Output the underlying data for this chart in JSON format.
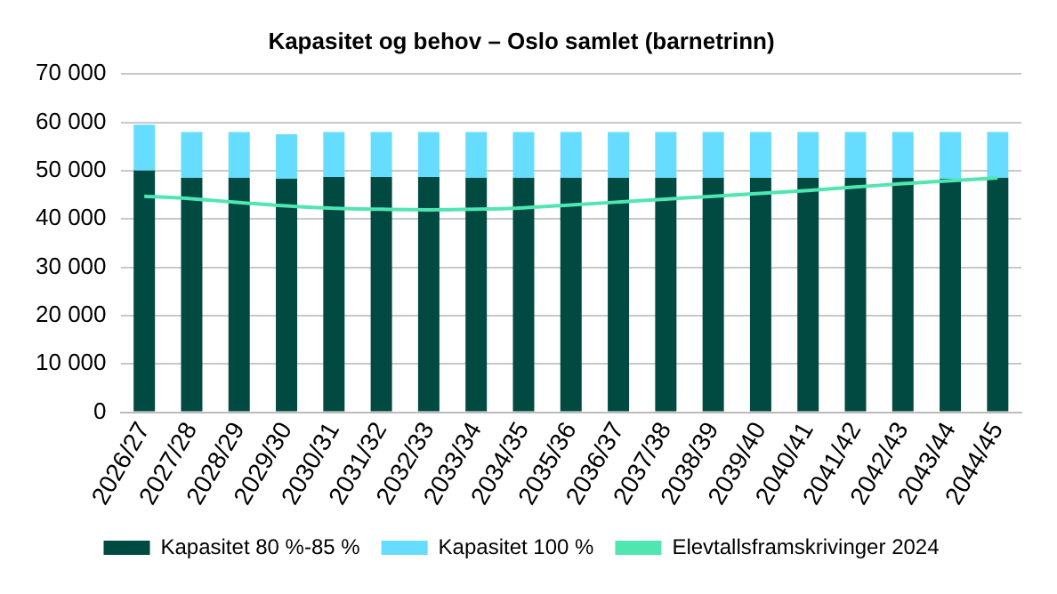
{
  "chart_data": {
    "type": "bar",
    "title": "Kapasitet og behov – Oslo samlet (barnetrinn)",
    "stacked": true,
    "legend": "bottom",
    "grid": "y",
    "marker": "none",
    "categories": [
      "2026/27",
      "2027/28",
      "2028/29",
      "2029/30",
      "2030/31",
      "2031/32",
      "2032/33",
      "2033/34",
      "2034/35",
      "2035/36",
      "2036/37",
      "2037/38",
      "2038/39",
      "2039/40",
      "2040/41",
      "2041/42",
      "2042/43",
      "2043/44",
      "2044/45"
    ],
    "ylim": [
      0,
      70000
    ],
    "yticks": [
      {
        "value": 0,
        "label": "0"
      },
      {
        "value": 10000,
        "label": "10 000"
      },
      {
        "value": 20000,
        "label": "20 000"
      },
      {
        "value": 30000,
        "label": "30 000"
      },
      {
        "value": 40000,
        "label": "40 000"
      },
      {
        "value": 50000,
        "label": "50 000"
      },
      {
        "value": 60000,
        "label": "60 000"
      },
      {
        "value": 70000,
        "label": "70 000"
      }
    ],
    "series": [
      {
        "name": "Kapasitet 80 %-85 %",
        "color": "#004a41",
        "values": [
          50000,
          48500,
          48500,
          48300,
          48700,
          48700,
          48700,
          48500,
          48500,
          48500,
          48500,
          48500,
          48500,
          48500,
          48500,
          48500,
          48500,
          48300,
          48500
        ]
      },
      {
        "name": "Kapasitet 100 %",
        "color": "#66dcff",
        "values": [
          9500,
          9500,
          9500,
          9200,
          9300,
          9300,
          9300,
          9500,
          9500,
          9500,
          9500,
          9500,
          9500,
          9500,
          9500,
          9500,
          9500,
          9700,
          9500
        ]
      },
      {
        "name": "Elevtallsframskrivinger 2024",
        "type": "line",
        "color": "#4fe6b0",
        "values": [
          44700,
          44200,
          43400,
          42700,
          42200,
          42000,
          41900,
          42000,
          42300,
          42900,
          43500,
          44100,
          44700,
          45300,
          45900,
          46600,
          47300,
          47900,
          48500
        ]
      }
    ]
  }
}
